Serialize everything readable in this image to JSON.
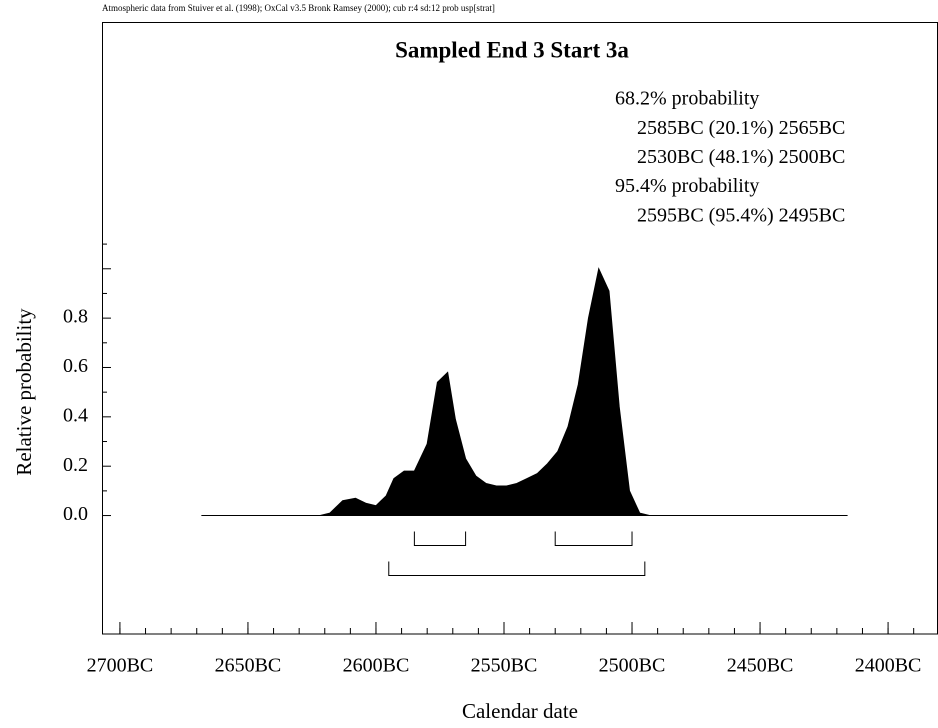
{
  "chart_data": {
    "type": "area",
    "note": "Atmospheric data from Stuiver et al. (1998); OxCal v3.5 Bronk Ramsey (2000); cub r:4 sd:12 prob usp[strat]",
    "title": "Sampled End 3 Start 3a",
    "x_label": "Calendar date",
    "y_label": "Relative probability",
    "color": "#000000",
    "x": [
      2668,
      2622,
      2618,
      2613,
      2608,
      2604,
      2600,
      2596,
      2593,
      2589,
      2585,
      2580,
      2576,
      2572,
      2569,
      2565,
      2561,
      2557,
      2553,
      2549,
      2545,
      2541,
      2537,
      2533,
      2529,
      2525,
      2521,
      2517,
      2513,
      2509,
      2505,
      2501,
      2497,
      2493,
      2416
    ],
    "values": [
      0,
      0,
      0.01,
      0.06,
      0.07,
      0.05,
      0.04,
      0.08,
      0.15,
      0.18,
      0.18,
      0.29,
      0.54,
      0.58,
      0.39,
      0.23,
      0.16,
      0.13,
      0.12,
      0.12,
      0.13,
      0.15,
      0.17,
      0.21,
      0.26,
      0.36,
      0.53,
      0.8,
      1.0,
      0.91,
      0.44,
      0.1,
      0.01,
      0,
      0
    ],
    "xlim": [
      2707,
      2380.5
    ],
    "ylim": [
      -0.48,
      2.0
    ],
    "xticks": [
      {
        "value": 2700,
        "label": "2700BC"
      },
      {
        "value": 2650,
        "label": "2650BC"
      },
      {
        "value": 2600,
        "label": "2600BC"
      },
      {
        "value": 2550,
        "label": "2550BC"
      },
      {
        "value": 2500,
        "label": "2500BC"
      },
      {
        "value": 2450,
        "label": "2450BC"
      },
      {
        "value": 2400,
        "label": "2400BC"
      }
    ],
    "yticks": [
      {
        "value": 0,
        "label": "0.0"
      },
      {
        "value": 0.2,
        "label": "0.2"
      },
      {
        "value": 0.4,
        "label": "0.4"
      },
      {
        "value": 0.6,
        "label": "0.6"
      },
      {
        "value": 0.8,
        "label": "0.8"
      }
    ],
    "range_groups": [
      {
        "label": "68.2% probability",
        "ranges": [
          {
            "label": "2585BC (20.1%) 2565BC",
            "from": 2585,
            "to": 2565
          },
          {
            "label": "2530BC (48.1%) 2500BC",
            "from": 2530,
            "to": 2500
          }
        ]
      },
      {
        "label": "95.4% probability",
        "ranges": [
          {
            "label": "2595BC (95.4%) 2495BC",
            "from": 2595,
            "to": 2495
          }
        ]
      }
    ]
  }
}
